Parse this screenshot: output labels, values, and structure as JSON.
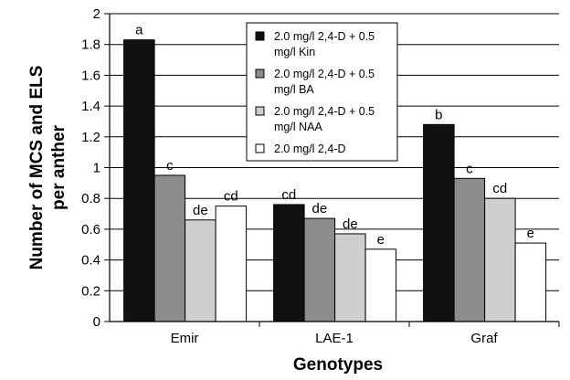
{
  "chart_data": {
    "type": "bar",
    "title": "",
    "xlabel": "Genotypes",
    "ylabel_lines": [
      "Number of MCS and ELS",
      "per anther"
    ],
    "categories": [
      "Emir",
      "LAE-1",
      "Graf"
    ],
    "ylim": [
      0,
      2
    ],
    "yticks": [
      "0",
      "0.2",
      "0.4",
      "0.6",
      "0.8",
      "1",
      "1.2",
      "1.4",
      "1.6",
      "1.8",
      "2"
    ],
    "grid": true,
    "legend_position": "top-center",
    "series": [
      {
        "name_lines": [
          "2.0 mg/l 2,4-D + 0.5",
          "mg/l Kin"
        ],
        "color": "#111111",
        "values": [
          1.83,
          0.76,
          1.28
        ],
        "labels": [
          "a",
          "cd",
          "b"
        ]
      },
      {
        "name_lines": [
          "2.0 mg/l 2,4-D + 0.5",
          "mg/l BA"
        ],
        "color": "#8c8c8c",
        "values": [
          0.95,
          0.67,
          0.93
        ],
        "labels": [
          "c",
          "de",
          "c"
        ]
      },
      {
        "name_lines": [
          "2.0 mg/l 2,4-D + 0.5",
          "mg/l NAA"
        ],
        "color": "#cfcfcf",
        "values": [
          0.66,
          0.57,
          0.8
        ],
        "labels": [
          "de",
          "de",
          "cd"
        ]
      },
      {
        "name_lines": [
          "2.0 mg/l 2,4-D"
        ],
        "color": "#ffffff",
        "values": [
          0.75,
          0.47,
          0.51
        ],
        "labels": [
          "cd",
          "e",
          "e"
        ]
      }
    ]
  }
}
